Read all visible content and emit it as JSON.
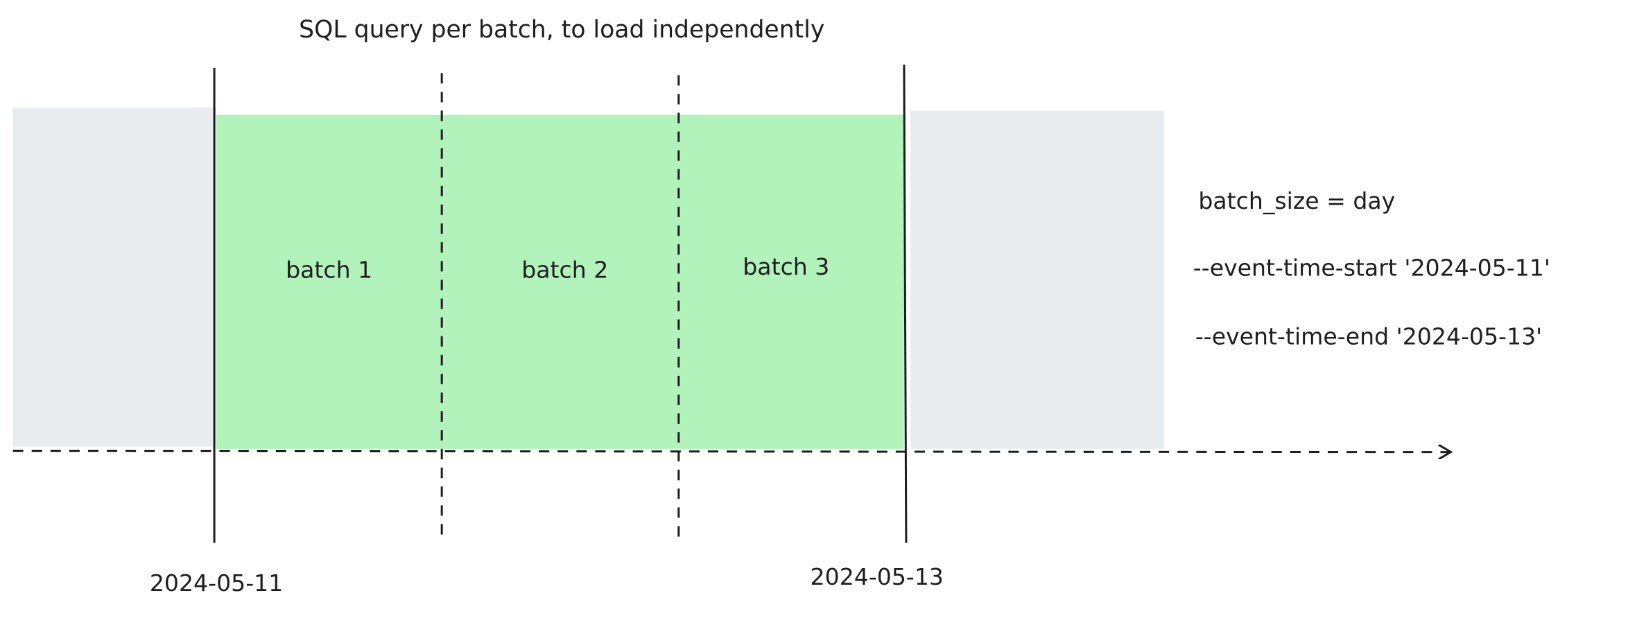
{
  "title": "SQL query per batch, to load independently",
  "colors": {
    "outside_range": "#e9ecef",
    "batch_range": "#b2f2bb",
    "stroke": "#1e1e1e"
  },
  "batches": [
    {
      "label": "batch 1"
    },
    {
      "label": "batch 2"
    },
    {
      "label": "batch 3"
    }
  ],
  "boundaries": {
    "start": "2024-05-11",
    "end": "2024-05-13"
  },
  "config": {
    "batch_size": "batch_size = day",
    "start_arg": "--event-time-start '2024-05-11'",
    "end_arg": "--event-time-end '2024-05-13'"
  }
}
